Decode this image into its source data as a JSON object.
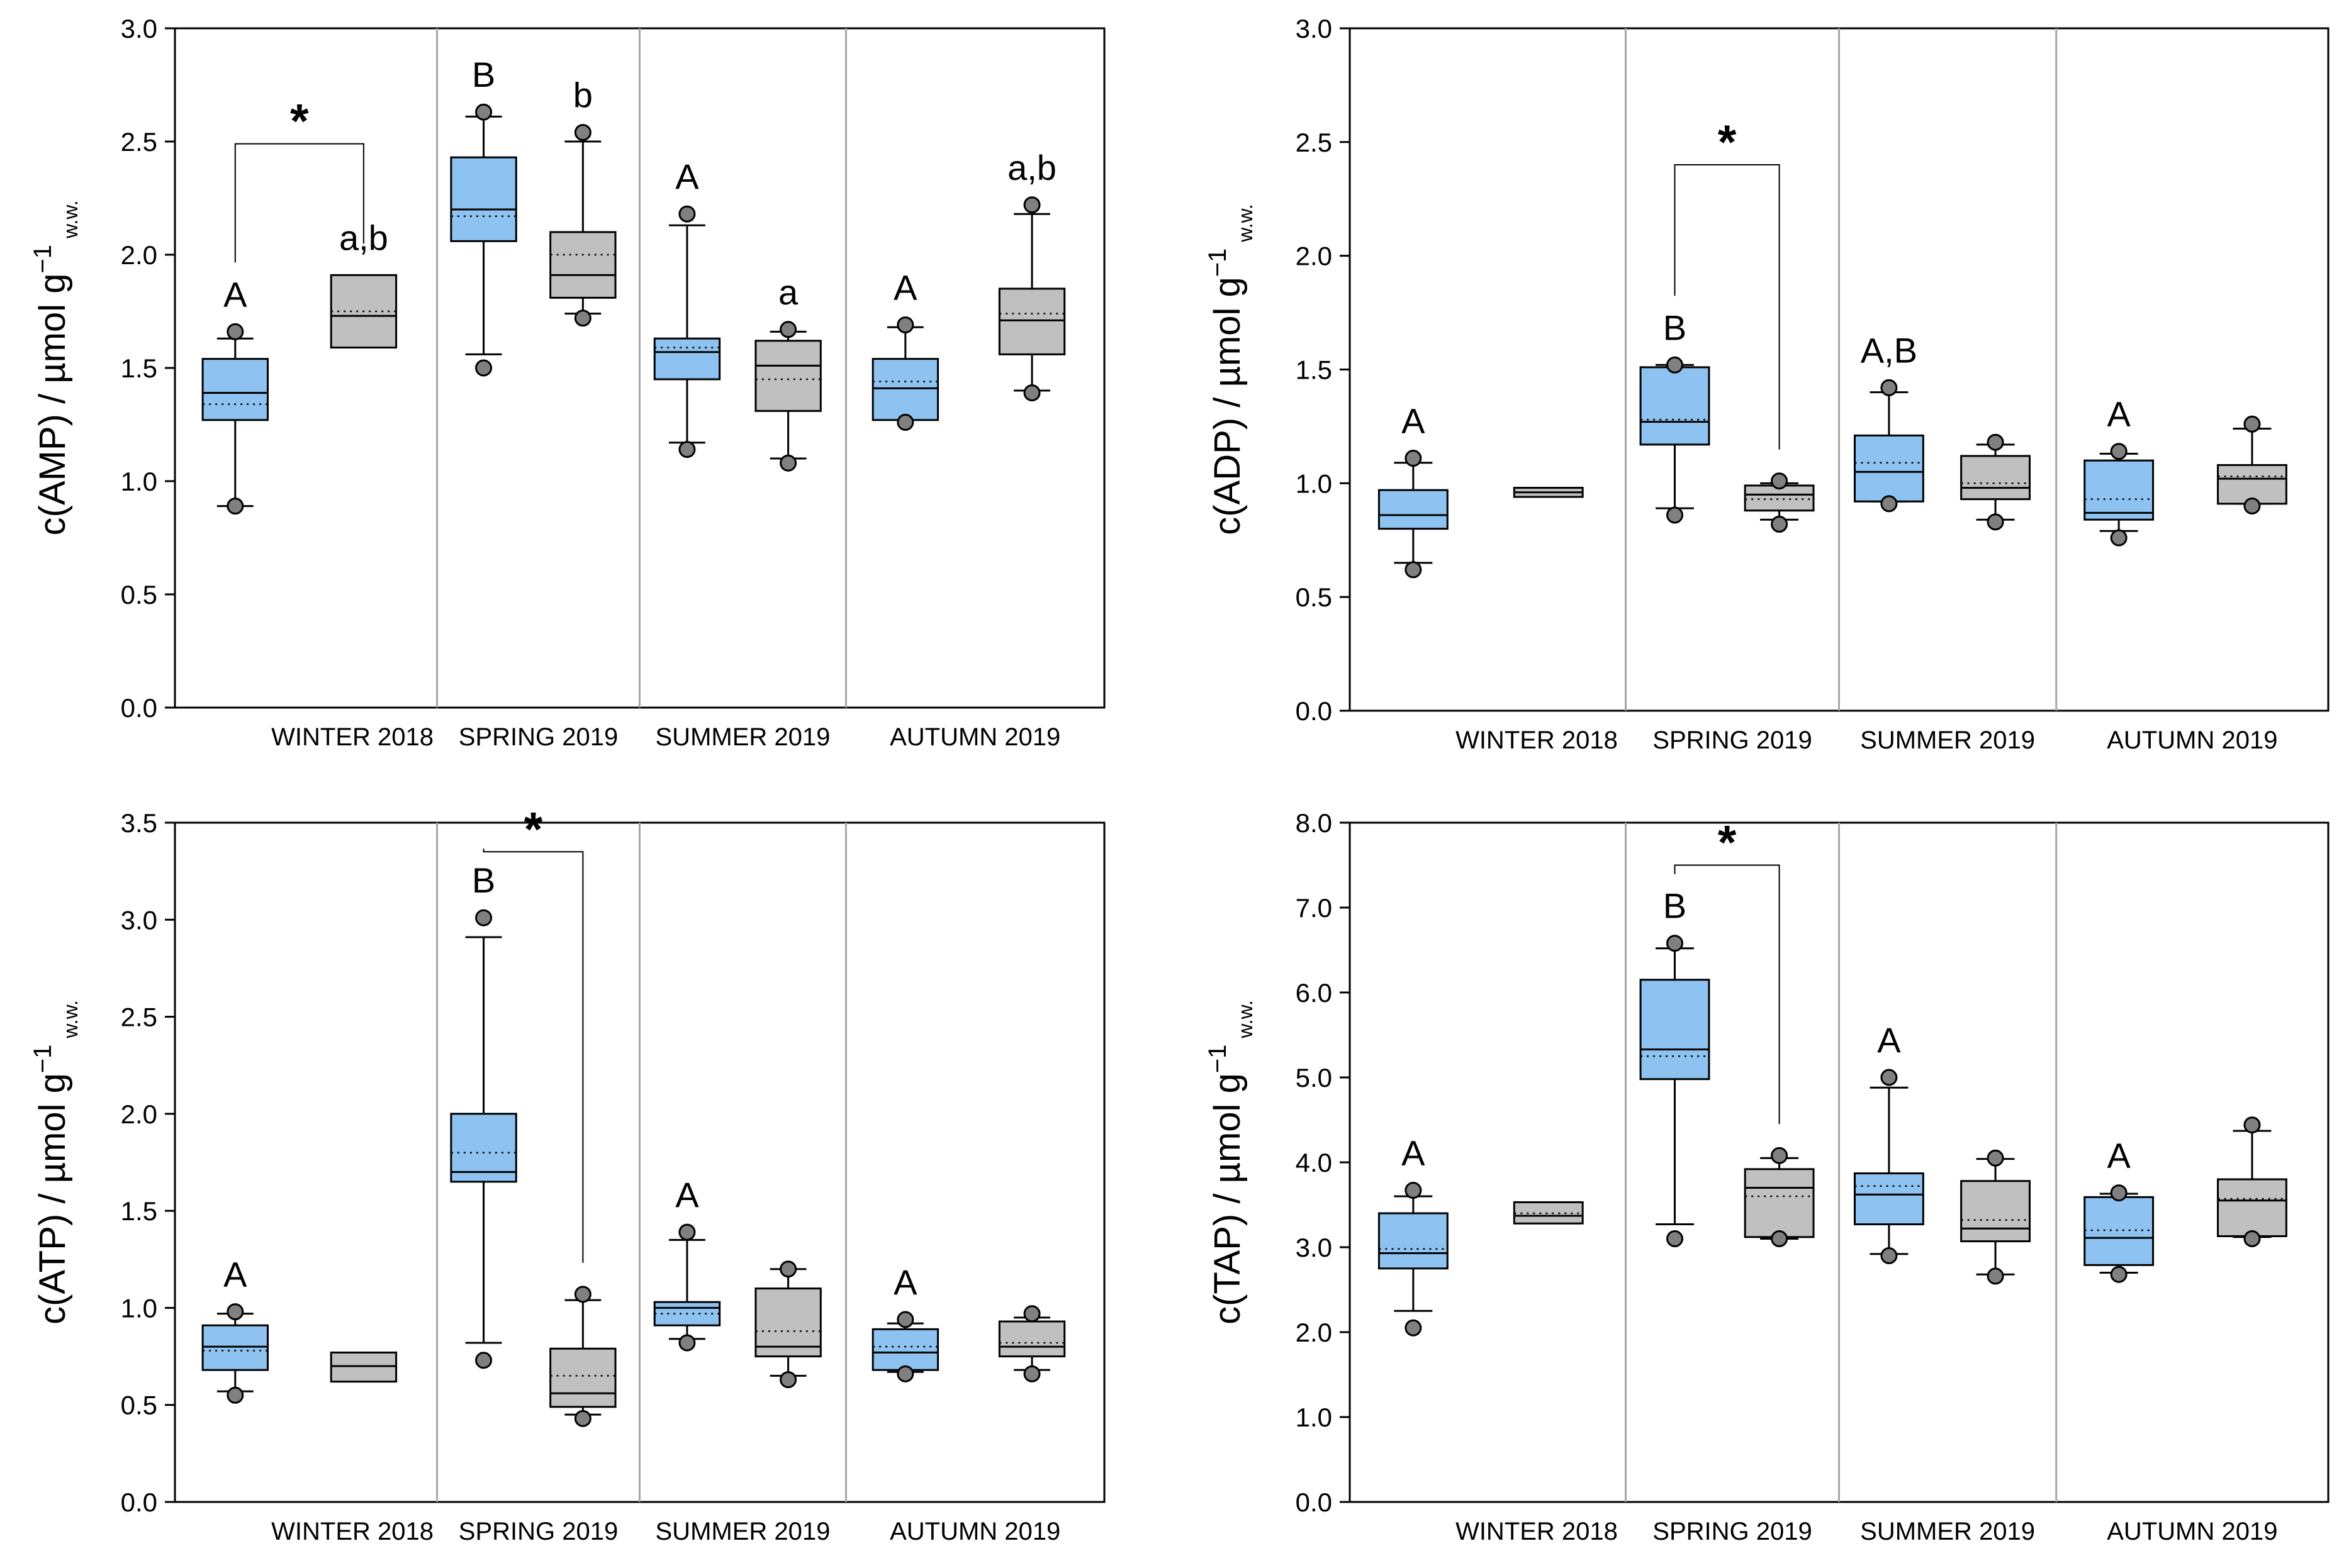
{
  "colors": {
    "group1_fill": "#8EC3F1",
    "group2_fill": "#C0C0C0",
    "outlier_fill": "#808080",
    "divider": "#A6A6A6",
    "frame": "#000000"
  },
  "chart_data": [
    {
      "type": "box",
      "ylabel": "c(AMP) / µmol g",
      "ylabel_sup": "−1",
      "ylabel_sub": "w.w.",
      "ylim": [
        0,
        3
      ],
      "yticks": [
        "0.0",
        "0.5",
        "1.0",
        "1.5",
        "2.0",
        "2.5",
        "3.0"
      ],
      "categories": [
        "WINTER 2018",
        "SPRING 2019",
        "SUMMER 2019",
        "AUTUMN 2019"
      ],
      "boxes": [
        {
          "season": 0,
          "group": 1,
          "wlo": 0.89,
          "q1": 1.27,
          "med": 1.39,
          "mean": 1.34,
          "q3": 1.54,
          "whi": 1.63,
          "outliers": [
            0.89,
            1.66
          ],
          "label": "A"
        },
        {
          "season": 0,
          "group": 2,
          "wlo": null,
          "q1": 1.59,
          "med": 1.73,
          "mean": 1.75,
          "q3": 1.91,
          "whi": null,
          "outliers": [],
          "label": "a,b"
        },
        {
          "season": 1,
          "group": 1,
          "wlo": 1.56,
          "q1": 2.06,
          "med": 2.2,
          "mean": 2.17,
          "q3": 2.43,
          "whi": 2.61,
          "outliers": [
            1.5,
            2.63
          ],
          "label": "B"
        },
        {
          "season": 1,
          "group": 2,
          "wlo": 1.74,
          "q1": 1.81,
          "med": 1.91,
          "mean": 2.0,
          "q3": 2.1,
          "whi": 2.5,
          "outliers": [
            1.72,
            2.54
          ],
          "label": "b"
        },
        {
          "season": 2,
          "group": 1,
          "wlo": 1.17,
          "q1": 1.45,
          "med": 1.57,
          "mean": 1.59,
          "q3": 1.63,
          "whi": 2.13,
          "outliers": [
            1.14,
            2.18
          ],
          "label": "A"
        },
        {
          "season": 2,
          "group": 2,
          "wlo": 1.1,
          "q1": 1.31,
          "med": 1.51,
          "mean": 1.45,
          "q3": 1.62,
          "whi": 1.66,
          "outliers": [
            1.08,
            1.67
          ],
          "label": "a"
        },
        {
          "season": 3,
          "group": 1,
          "wlo": 1.28,
          "q1": 1.27,
          "med": 1.41,
          "mean": 1.44,
          "q3": 1.54,
          "whi": 1.68,
          "outliers": [
            1.26,
            1.69
          ],
          "label": "A"
        },
        {
          "season": 3,
          "group": 2,
          "wlo": 1.4,
          "q1": 1.56,
          "med": 1.71,
          "mean": 1.74,
          "q3": 1.85,
          "whi": 2.18,
          "outliers": [
            1.39,
            2.22
          ],
          "label": "a,b"
        }
      ],
      "significance": [
        {
          "season": 0,
          "y": 2.49,
          "label": "*"
        }
      ]
    },
    {
      "type": "box",
      "ylabel": "c(ADP) / µmol g",
      "ylabel_sup": "−1",
      "ylabel_sub": "w.w.",
      "ylim": [
        0,
        3
      ],
      "yticks": [
        "0.0",
        "0.5",
        "1.0",
        "1.5",
        "2.0",
        "2.5",
        "3.0"
      ],
      "categories": [
        "WINTER 2018",
        "SPRING 2019",
        "SUMMER 2019",
        "AUTUMN 2019"
      ],
      "boxes": [
        {
          "season": 0,
          "group": 1,
          "wlo": 0.65,
          "q1": 0.8,
          "med": 0.86,
          "mean": 0.86,
          "q3": 0.97,
          "whi": 1.09,
          "outliers": [
            0.62,
            1.11
          ],
          "label": "A"
        },
        {
          "season": 0,
          "group": 2,
          "wlo": null,
          "q1": 0.94,
          "med": 0.96,
          "mean": 0.96,
          "q3": 0.98,
          "whi": null,
          "outliers": [],
          "label": ""
        },
        {
          "season": 1,
          "group": 1,
          "wlo": 0.89,
          "q1": 1.17,
          "med": 1.27,
          "mean": 1.28,
          "q3": 1.51,
          "whi": 1.52,
          "outliers": [
            0.86,
            1.52
          ],
          "label": "B"
        },
        {
          "season": 1,
          "group": 2,
          "wlo": 0.84,
          "q1": 0.88,
          "med": 0.95,
          "mean": 0.93,
          "q3": 0.99,
          "whi": 1.0,
          "outliers": [
            0.82,
            1.01
          ],
          "label": ""
        },
        {
          "season": 2,
          "group": 1,
          "wlo": 0.92,
          "q1": 0.92,
          "med": 1.05,
          "mean": 1.09,
          "q3": 1.21,
          "whi": 1.4,
          "outliers": [
            0.91,
            1.42
          ],
          "label": "A,B"
        },
        {
          "season": 2,
          "group": 2,
          "wlo": 0.84,
          "q1": 0.93,
          "med": 0.98,
          "mean": 1.0,
          "q3": 1.12,
          "whi": 1.17,
          "outliers": [
            0.83,
            1.18
          ],
          "label": ""
        },
        {
          "season": 3,
          "group": 1,
          "wlo": 0.79,
          "q1": 0.84,
          "med": 0.87,
          "mean": 0.93,
          "q3": 1.1,
          "whi": 1.13,
          "outliers": [
            0.76,
            1.14
          ],
          "label": "A"
        },
        {
          "season": 3,
          "group": 2,
          "wlo": 0.91,
          "q1": 0.91,
          "med": 1.02,
          "mean": 1.03,
          "q3": 1.08,
          "whi": 1.24,
          "outliers": [
            0.9,
            1.26
          ],
          "label": ""
        }
      ],
      "significance": [
        {
          "season": 1,
          "y": 2.4,
          "label": "*"
        }
      ]
    },
    {
      "type": "box",
      "ylabel": "c(ATP) / µmol g",
      "ylabel_sup": "−1",
      "ylabel_sub": "w.w.",
      "ylim": [
        0,
        3.5
      ],
      "yticks": [
        "0.0",
        "0.5",
        "1.0",
        "1.5",
        "2.0",
        "2.5",
        "3.0",
        "3.5"
      ],
      "categories": [
        "WINTER 2018",
        "SPRING 2019",
        "SUMMER 2019",
        "AUTUMN 2019"
      ],
      "boxes": [
        {
          "season": 0,
          "group": 1,
          "wlo": 0.57,
          "q1": 0.68,
          "med": 0.8,
          "mean": 0.78,
          "q3": 0.91,
          "whi": 0.97,
          "outliers": [
            0.55,
            0.98
          ],
          "label": "A"
        },
        {
          "season": 0,
          "group": 2,
          "wlo": null,
          "q1": 0.62,
          "med": 0.7,
          "mean": 0.7,
          "q3": 0.77,
          "whi": null,
          "outliers": [],
          "label": ""
        },
        {
          "season": 1,
          "group": 1,
          "wlo": 0.82,
          "q1": 1.65,
          "med": 1.7,
          "mean": 1.8,
          "q3": 2.0,
          "whi": 2.91,
          "outliers": [
            0.73,
            3.01
          ],
          "label": "B"
        },
        {
          "season": 1,
          "group": 2,
          "wlo": 0.45,
          "q1": 0.49,
          "med": 0.56,
          "mean": 0.65,
          "q3": 0.79,
          "whi": 1.04,
          "outliers": [
            0.43,
            1.07
          ],
          "label": ""
        },
        {
          "season": 2,
          "group": 1,
          "wlo": 0.84,
          "q1": 0.91,
          "med": 1.0,
          "mean": 0.97,
          "q3": 1.03,
          "whi": 1.35,
          "outliers": [
            0.82,
            1.39
          ],
          "label": "A"
        },
        {
          "season": 2,
          "group": 2,
          "wlo": 0.65,
          "q1": 0.75,
          "med": 0.8,
          "mean": 0.88,
          "q3": 1.1,
          "whi": 1.2,
          "outliers": [
            0.63,
            1.2
          ],
          "label": ""
        },
        {
          "season": 3,
          "group": 1,
          "wlo": 0.67,
          "q1": 0.68,
          "med": 0.77,
          "mean": 0.8,
          "q3": 0.89,
          "whi": 0.92,
          "outliers": [
            0.66,
            0.94
          ],
          "label": "A"
        },
        {
          "season": 3,
          "group": 2,
          "wlo": 0.68,
          "q1": 0.75,
          "med": 0.8,
          "mean": 0.82,
          "q3": 0.93,
          "whi": 0.95,
          "outliers": [
            0.66,
            0.97
          ],
          "label": ""
        }
      ],
      "significance": [
        {
          "season": 1,
          "y": 3.35,
          "label": "*"
        }
      ]
    },
    {
      "type": "box",
      "ylabel": "c(TAP) / µmol g",
      "ylabel_sup": "−1",
      "ylabel_sub": "w.w.",
      "ylim": [
        0,
        8
      ],
      "yticks": [
        "0.0",
        "1.0",
        "2.0",
        "3.0",
        "4.0",
        "5.0",
        "6.0",
        "7.0",
        "8.0"
      ],
      "categories": [
        "WINTER 2018",
        "SPRING 2019",
        "SUMMER 2019",
        "AUTUMN 2019"
      ],
      "boxes": [
        {
          "season": 0,
          "group": 1,
          "wlo": 2.25,
          "q1": 2.75,
          "med": 2.93,
          "mean": 2.98,
          "q3": 3.4,
          "whi": 3.6,
          "outliers": [
            2.05,
            3.67
          ],
          "label": "A"
        },
        {
          "season": 0,
          "group": 2,
          "wlo": null,
          "q1": 3.28,
          "med": 3.37,
          "mean": 3.4,
          "q3": 3.53,
          "whi": null,
          "outliers": [],
          "label": ""
        },
        {
          "season": 1,
          "group": 1,
          "wlo": 3.27,
          "q1": 4.98,
          "med": 5.33,
          "mean": 5.25,
          "q3": 6.15,
          "whi": 6.52,
          "outliers": [
            3.1,
            6.58
          ],
          "label": "B"
        },
        {
          "season": 1,
          "group": 2,
          "wlo": 3.1,
          "q1": 3.12,
          "med": 3.7,
          "mean": 3.6,
          "q3": 3.92,
          "whi": 4.05,
          "outliers": [
            3.1,
            4.08
          ],
          "label": ""
        },
        {
          "season": 2,
          "group": 1,
          "wlo": 2.92,
          "q1": 3.27,
          "med": 3.62,
          "mean": 3.72,
          "q3": 3.87,
          "whi": 4.88,
          "outliers": [
            2.9,
            5.0
          ],
          "label": "A"
        },
        {
          "season": 2,
          "group": 2,
          "wlo": 2.68,
          "q1": 3.07,
          "med": 3.22,
          "mean": 3.32,
          "q3": 3.78,
          "whi": 4.04,
          "outliers": [
            2.66,
            4.05
          ],
          "label": ""
        },
        {
          "season": 3,
          "group": 1,
          "wlo": 2.7,
          "q1": 2.79,
          "med": 3.11,
          "mean": 3.2,
          "q3": 3.59,
          "whi": 3.63,
          "outliers": [
            2.68,
            3.64
          ],
          "label": "A"
        },
        {
          "season": 3,
          "group": 2,
          "wlo": 3.12,
          "q1": 3.13,
          "med": 3.55,
          "mean": 3.57,
          "q3": 3.8,
          "whi": 4.37,
          "outliers": [
            3.1,
            4.44
          ],
          "label": ""
        }
      ],
      "significance": [
        {
          "season": 1,
          "y": 7.5,
          "label": "*"
        }
      ]
    }
  ]
}
